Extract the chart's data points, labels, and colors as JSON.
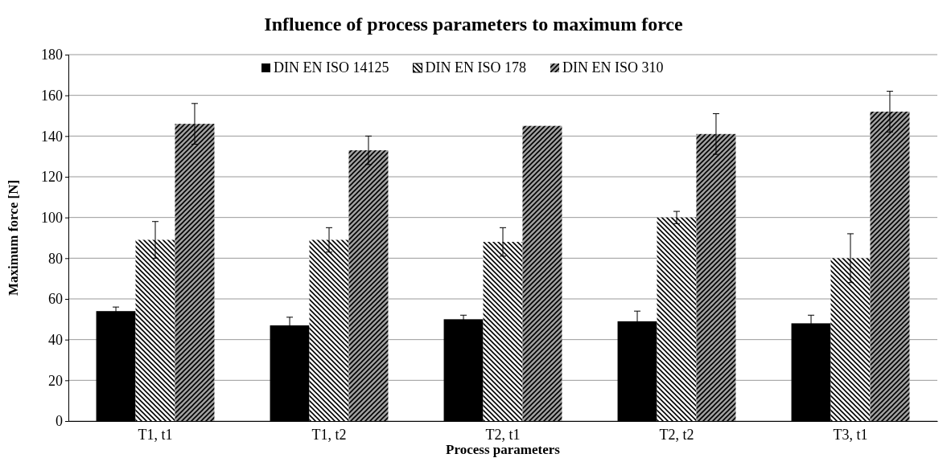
{
  "chart_data": {
    "type": "bar",
    "title": "Influence of process parameters to maximum force",
    "xlabel": "Process parameters",
    "ylabel": "Maximum force [N]",
    "categories": [
      "T1, t1",
      "T1, t2",
      "T2, t1",
      "T2, t2",
      "T3, t1"
    ],
    "series": [
      {
        "name": "DIN EN ISO 14125",
        "color": "#000000",
        "values": [
          54,
          47,
          50,
          49,
          48
        ],
        "errors": [
          2,
          4,
          2,
          5,
          4
        ]
      },
      {
        "name": "DIN EN ISO 178",
        "color": "#ffffff",
        "values": [
          89,
          89,
          88,
          100,
          80
        ],
        "errors": [
          9,
          6,
          7,
          3,
          12
        ]
      },
      {
        "name": "DIN EN ISO 310",
        "color": "#a0a0a0",
        "values": [
          146,
          133,
          145,
          141,
          152
        ],
        "errors": [
          10,
          7,
          null,
          10,
          10
        ]
      }
    ],
    "ylim": [
      0,
      180
    ],
    "yticks": [
      0,
      20,
      40,
      60,
      80,
      100,
      120,
      140,
      160,
      180
    ],
    "grid": "y",
    "legend": "top"
  }
}
